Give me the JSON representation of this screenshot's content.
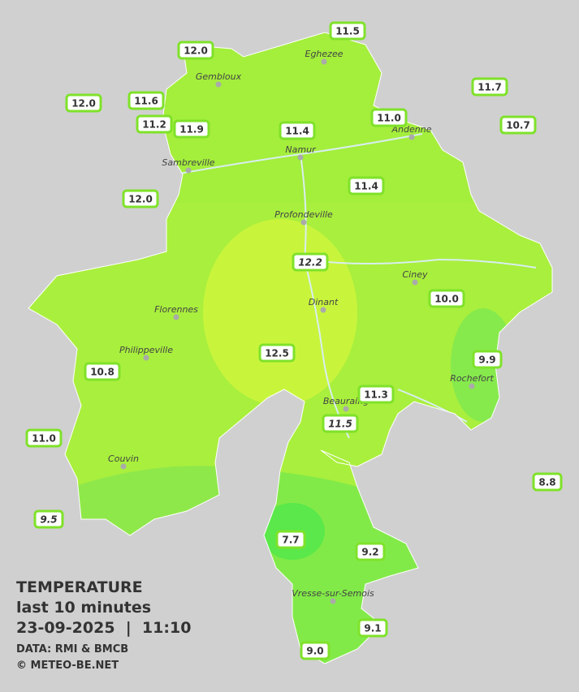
{
  "stations": [
    "11.5",
    "12.0",
    "11.7",
    "12.0",
    "11.6",
    "11.2",
    "11.9",
    "11.4",
    "11.0",
    "10.7",
    "12.0",
    "11.4",
    "12.2",
    "10.0",
    "12.5",
    "9.9",
    "10.8",
    "11.3",
    "11.5",
    "11.0",
    "8.8",
    "9.5",
    "7.7",
    "9.2",
    "9.1",
    "9.0"
  ],
  "cities": [
    "Eghezee",
    "Gembloux",
    "Andenne",
    "Namur",
    "Sambreville",
    "Profondeville",
    "Ciney",
    "Florennes",
    "Dinant",
    "Philippeville",
    "Rochefort",
    "Beauraing",
    "Couvin",
    "Vresse-sur-Semois"
  ],
  "legend": {
    "title": "TEMPERATURE",
    "subtitle": "last 10 minutes",
    "datetime": "23-09-2025  |  11:10",
    "source": "DATA: RMI & BMCB",
    "credit": "© METEO-BE.NET"
  }
}
